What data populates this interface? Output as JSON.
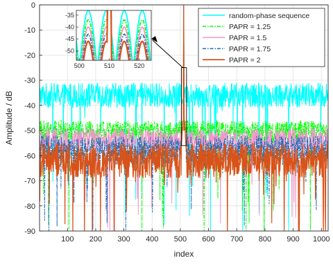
{
  "chart_data": {
    "type": "line",
    "title": "",
    "xlabel": "index",
    "ylabel": "Amplitude / dB",
    "xlim": [
      1,
      1024
    ],
    "ylim": [
      -90,
      0
    ],
    "xticks": [
      100,
      200,
      300,
      400,
      500,
      600,
      700,
      800,
      900,
      1000
    ],
    "yticks": [
      0,
      -10,
      -20,
      -30,
      -40,
      -50,
      -60,
      -70,
      -80,
      -90
    ],
    "grid": true,
    "legend_position": "top-right",
    "series": [
      {
        "name": "random-phase sequence",
        "color": "#00ffff",
        "style": "solid",
        "baseline_db": -36,
        "spread_db": 5,
        "min_db": -90,
        "peak_index": 512,
        "peak_db": 0
      },
      {
        "name": "PAPR = 1.25",
        "color": "#00ff00",
        "style": "dashdot",
        "baseline_db": -50,
        "spread_db": 4,
        "min_db": -90,
        "peak_index": 512,
        "peak_db": 0
      },
      {
        "name": "PAPR = 1.5",
        "color": "#f295c9",
        "style": "solid",
        "baseline_db": -54,
        "spread_db": 5,
        "min_db": -90,
        "peak_index": 512,
        "peak_db": 0
      },
      {
        "name": "PAPR = 1.75",
        "color": "#1f6fb4",
        "style": "dashdot",
        "baseline_db": -58,
        "spread_db": 6,
        "min_db": -85,
        "peak_index": 512,
        "peak_db": 0
      },
      {
        "name": "PAPR = 2",
        "color": "#d95319",
        "style": "solid",
        "baseline_db": -62,
        "spread_db": 7,
        "min_db": -88,
        "peak_index": 512,
        "peak_db": 0
      }
    ],
    "inset": {
      "xlim": [
        499,
        524
      ],
      "ylim": [
        -54,
        -33
      ],
      "xticks": [
        500,
        510,
        520
      ],
      "yticks": [
        -35,
        -40,
        -45,
        -50
      ],
      "zoom_box": {
        "x": [
          504,
          522
        ],
        "y": [
          -56,
          -25
        ]
      }
    }
  }
}
